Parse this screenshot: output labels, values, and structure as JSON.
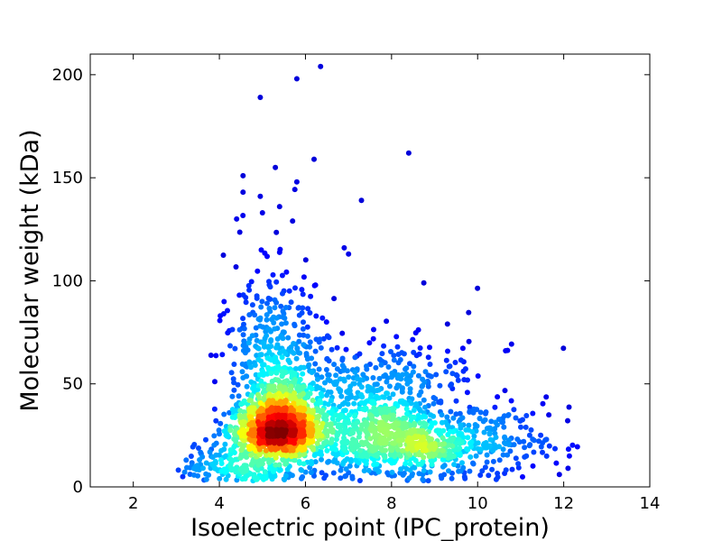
{
  "chart_data": {
    "type": "scatter",
    "title": "",
    "xlabel": "Isoelectric point (IPC_protein)",
    "ylabel": "Molecular weight (kDa)",
    "xlim": [
      1,
      14
    ],
    "ylim": [
      0,
      210
    ],
    "xticks": [
      2,
      4,
      6,
      8,
      10,
      12,
      14
    ],
    "yticks": [
      0,
      50,
      100,
      150,
      200
    ],
    "grid": false,
    "colormap": "jet",
    "color_encoding": "point density (blue = low, red = high)",
    "density_clusters": [
      {
        "x": 5.3,
        "y": 27,
        "level": "highest"
      },
      {
        "x": 8.5,
        "y": 18,
        "level": "medium"
      },
      {
        "x": 7.2,
        "y": 25,
        "level": "medium"
      }
    ],
    "outlier_points": [
      {
        "x": 5.5,
        "y": 210
      },
      {
        "x": 6.35,
        "y": 204
      },
      {
        "x": 5.8,
        "y": 198
      },
      {
        "x": 4.95,
        "y": 189
      },
      {
        "x": 8.4,
        "y": 162
      },
      {
        "x": 6.2,
        "y": 159
      },
      {
        "x": 5.3,
        "y": 155
      },
      {
        "x": 4.55,
        "y": 151
      },
      {
        "x": 5.8,
        "y": 148
      },
      {
        "x": 4.55,
        "y": 143
      },
      {
        "x": 4.95,
        "y": 141
      },
      {
        "x": 7.3,
        "y": 139
      },
      {
        "x": 5.0,
        "y": 133
      },
      {
        "x": 4.4,
        "y": 130
      },
      {
        "x": 5.4,
        "y": 136
      },
      {
        "x": 5.7,
        "y": 129
      },
      {
        "x": 6.9,
        "y": 116
      },
      {
        "x": 7.0,
        "y": 113
      },
      {
        "x": 8.75,
        "y": 99
      },
      {
        "x": 9.3,
        "y": 79
      },
      {
        "x": 12.1,
        "y": 9
      },
      {
        "x": 11.9,
        "y": 6
      },
      {
        "x": 3.15,
        "y": 5
      },
      {
        "x": 11.6,
        "y": 23
      }
    ],
    "colors": {
      "low": "#00007f",
      "mid_low": "#0080ff",
      "mid": "#00ffff",
      "mid_high": "#ffff00",
      "high": "#ff0000",
      "peak": "#800000"
    }
  }
}
